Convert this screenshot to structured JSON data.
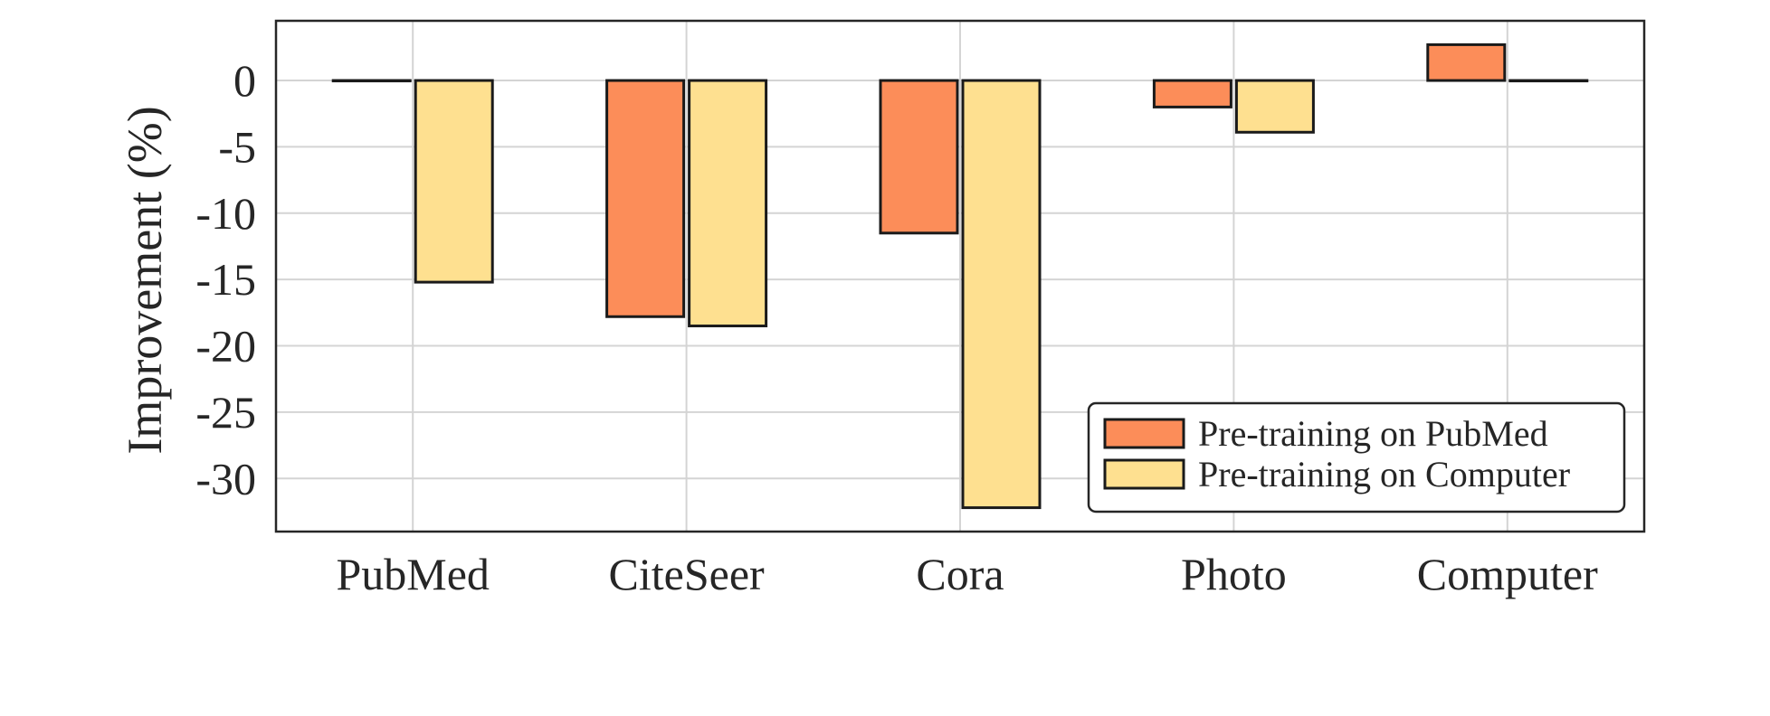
{
  "chart_data": {
    "type": "bar",
    "title": "",
    "xlabel": "",
    "ylabel": "Improvement (%)",
    "categories": [
      "PubMed",
      "CiteSeer",
      "Cora",
      "Photo",
      "Computer"
    ],
    "series": [
      {
        "name": "Pre-training on PubMed",
        "color": "#fc8d59",
        "values": [
          0.0,
          -17.8,
          -11.5,
          -2.0,
          2.7
        ]
      },
      {
        "name": "Pre-training on Computer",
        "color": "#fee090",
        "values": [
          -15.2,
          -18.5,
          -32.2,
          -3.9,
          0.0
        ]
      }
    ],
    "yticks": [
      0,
      -5,
      -10,
      -15,
      -20,
      -25,
      -30
    ],
    "ytick_labels": [
      "0",
      "-5",
      "-10",
      "-15",
      "-20",
      "-25",
      "-30"
    ],
    "ylim": [
      -34,
      4.5
    ],
    "grid": true,
    "legend_position": "lower-right"
  }
}
